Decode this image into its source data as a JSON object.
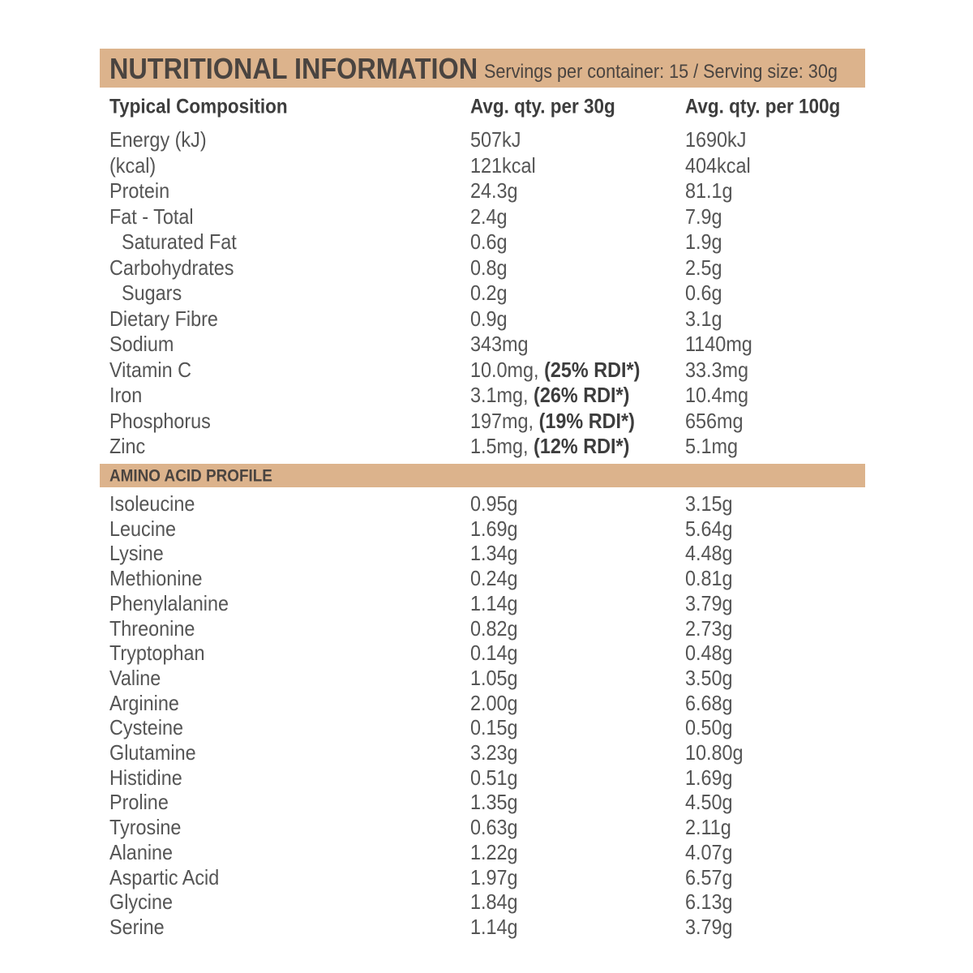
{
  "header": {
    "title": "NUTRITIONAL INFORMATION",
    "subtitle": "Servings per container: 15 / Serving size: 30g"
  },
  "table": {
    "columns": [
      "Typical Composition",
      "Avg. qty. per 30g",
      "Avg. qty. per 100g"
    ],
    "rows": [
      {
        "name": "Energy (kJ)",
        "per_30g": "507kJ",
        "per_100g": "1690kJ"
      },
      {
        "name": "(kcal)",
        "per_30g": "121kcal",
        "per_100g": "404kcal"
      },
      {
        "name": "Protein",
        "per_30g": "24.3g",
        "per_100g": "81.1g"
      },
      {
        "name": "Fat - Total",
        "per_30g": "2.4g",
        "per_100g": "7.9g"
      },
      {
        "name": "Saturated Fat",
        "per_30g": "0.6g",
        "per_100g": "1.9g",
        "indent": true
      },
      {
        "name": "Carbohydrates",
        "per_30g": "0.8g",
        "per_100g": "2.5g"
      },
      {
        "name": "Sugars",
        "per_30g": "0.2g",
        "per_100g": "0.6g",
        "indent": true
      },
      {
        "name": "Dietary Fibre",
        "per_30g": "0.9g",
        "per_100g": "3.1g"
      },
      {
        "name": "Sodium",
        "per_30g": "343mg",
        "per_100g": "1140mg"
      },
      {
        "name": "Vitamin C",
        "per_30g": "10.0mg,",
        "rdi": "(25% RDI*)",
        "per_100g": "33.3mg"
      },
      {
        "name": "Iron",
        "per_30g": "3.1mg,",
        "rdi": "(26% RDI*)",
        "per_100g": "10.4mg"
      },
      {
        "name": "Phosphorus",
        "per_30g": "197mg,",
        "rdi": "(19% RDI*)",
        "per_100g": "656mg"
      },
      {
        "name": "Zinc",
        "per_30g": "1.5mg,",
        "rdi": "(12% RDI*)",
        "per_100g": "5.1mg"
      }
    ]
  },
  "amino": {
    "title": "AMINO ACID PROFILE",
    "rows": [
      {
        "name": "Isoleucine",
        "per_30g": "0.95g",
        "per_100g": "3.15g"
      },
      {
        "name": "Leucine",
        "per_30g": "1.69g",
        "per_100g": "5.64g"
      },
      {
        "name": "Lysine",
        "per_30g": "1.34g",
        "per_100g": "4.48g"
      },
      {
        "name": "Methionine",
        "per_30g": "0.24g",
        "per_100g": "0.81g"
      },
      {
        "name": "Phenylalanine",
        "per_30g": "1.14g",
        "per_100g": "3.79g"
      },
      {
        "name": "Threonine",
        "per_30g": "0.82g",
        "per_100g": "2.73g"
      },
      {
        "name": "Tryptophan",
        "per_30g": "0.14g",
        "per_100g": "0.48g"
      },
      {
        "name": "Valine",
        "per_30g": "1.05g",
        "per_100g": "3.50g"
      },
      {
        "name": "Arginine",
        "per_30g": "2.00g",
        "per_100g": "6.68g"
      },
      {
        "name": "Cysteine",
        "per_30g": "0.15g",
        "per_100g": "0.50g"
      },
      {
        "name": "Glutamine",
        "per_30g": "3.23g",
        "per_100g": "10.80g"
      },
      {
        "name": "Histidine",
        "per_30g": "0.51g",
        "per_100g": "1.69g"
      },
      {
        "name": "Proline",
        "per_30g": "1.35g",
        "per_100g": "4.50g"
      },
      {
        "name": "Tyrosine",
        "per_30g": "0.63g",
        "per_100g": "2.11g"
      },
      {
        "name": "Alanine",
        "per_30g": "1.22g",
        "per_100g": "4.07g"
      },
      {
        "name": "Aspartic Acid",
        "per_30g": "1.97g",
        "per_100g": "6.57g"
      },
      {
        "name": "Glycine",
        "per_30g": "1.84g",
        "per_100g": "6.13g"
      },
      {
        "name": "Serine",
        "per_30g": "1.14g",
        "per_100g": "3.79g"
      }
    ]
  }
}
